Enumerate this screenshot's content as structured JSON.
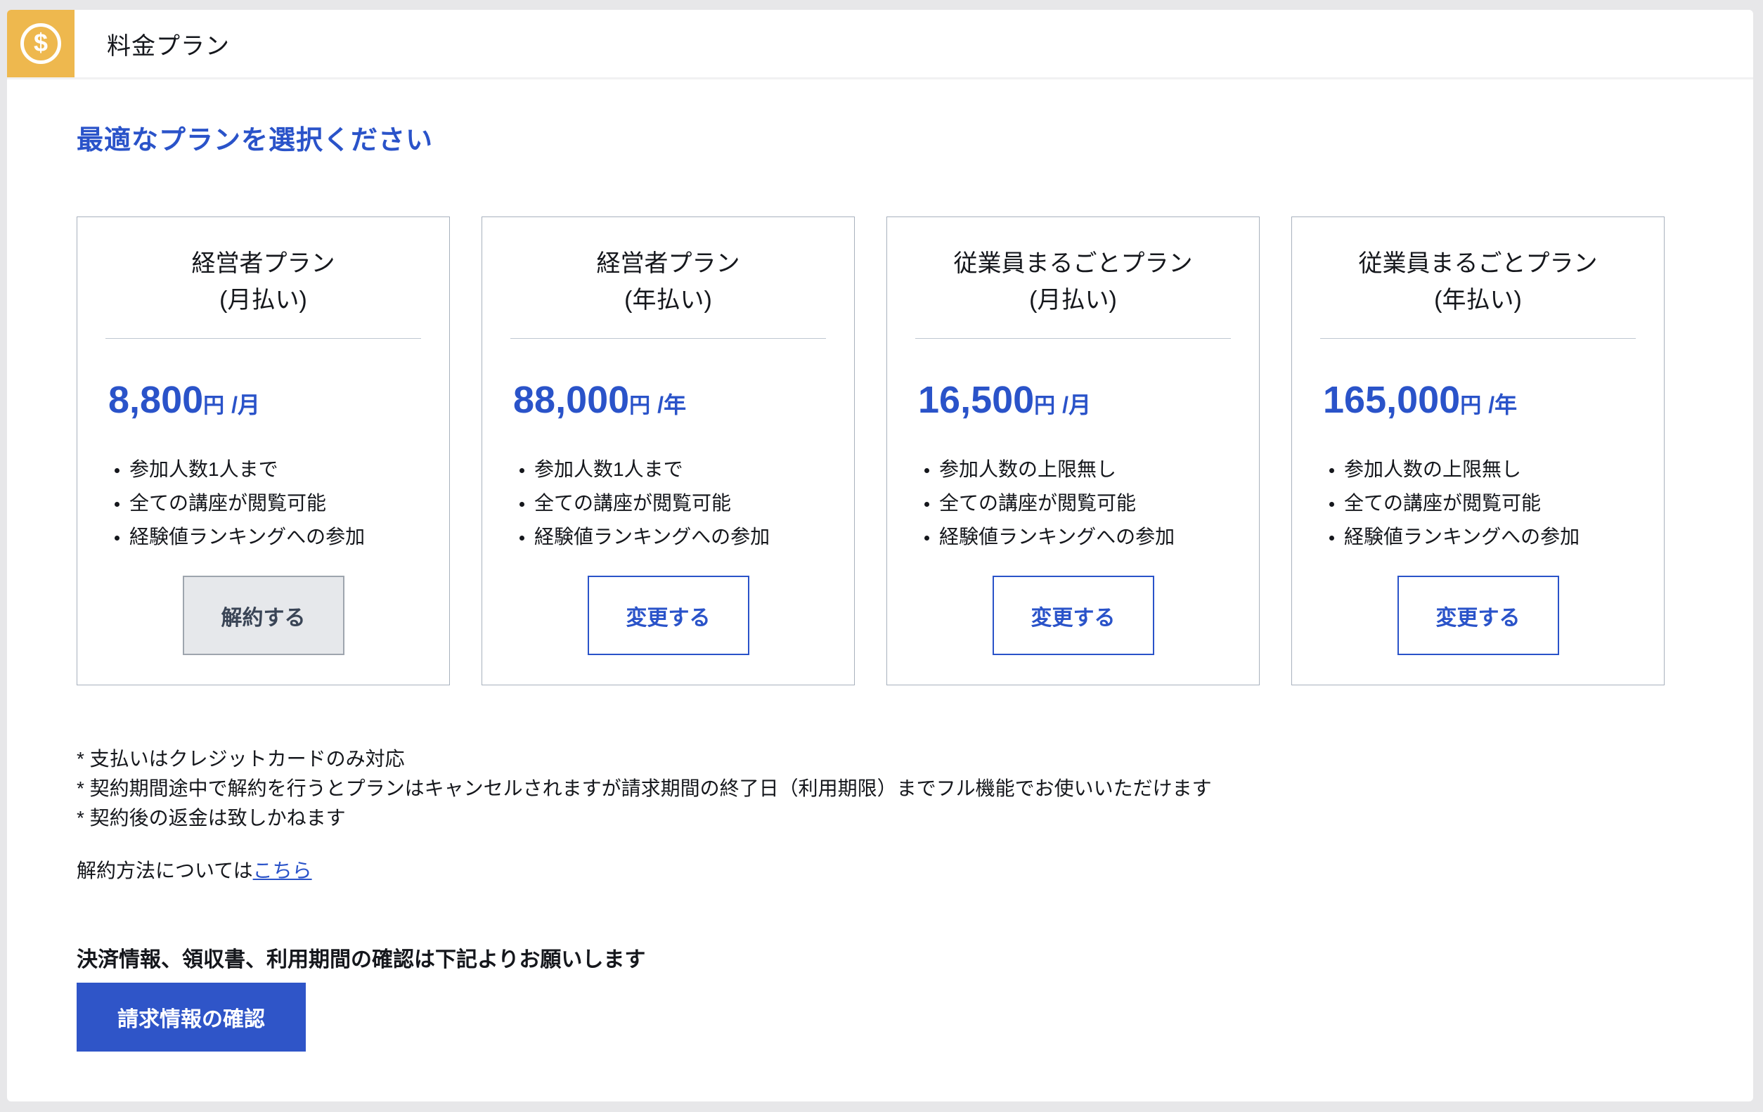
{
  "header": {
    "title": "料金プラン",
    "icon": "dollar-circle-icon"
  },
  "heading": "最適なプランを選択ください",
  "plans": [
    {
      "title_line1": "経営者プラン",
      "title_line2": "(月払い)",
      "price_amount": "8,800",
      "price_currency": "円",
      "price_period": "/月",
      "features": [
        "参加人数1人まで",
        "全ての講座が閲覧可能",
        "経験値ランキングへの参加"
      ],
      "button_label": "解約する"
    },
    {
      "title_line1": "経営者プラン",
      "title_line2": "(年払い)",
      "price_amount": "88,000",
      "price_currency": "円",
      "price_period": "/年",
      "features": [
        "参加人数1人まで",
        "全ての講座が閲覧可能",
        "経験値ランキングへの参加"
      ],
      "button_label": "変更する"
    },
    {
      "title_line1": "従業員まるごとプラン",
      "title_line2": "(月払い)",
      "price_amount": "16,500",
      "price_currency": "円",
      "price_period": "/月",
      "features": [
        "参加人数の上限無し",
        "全ての講座が閲覧可能",
        "経験値ランキングへの参加"
      ],
      "button_label": "変更する"
    },
    {
      "title_line1": "従業員まるごとプラン",
      "title_line2": "(年払い)",
      "price_amount": "165,000",
      "price_currency": "円",
      "price_period": "/年",
      "features": [
        "参加人数の上限無し",
        "全ての講座が閲覧可能",
        "経験値ランキングへの参加"
      ],
      "button_label": "変更する"
    }
  ],
  "notes": [
    "* 支払いはクレジットカードのみ対応",
    "* 契約期間途中で解約を行うとプランはキャンセルされますが請求期間の終了日（利用期限）までフル機能でお使いいただけます",
    "* 契約後の返金は致しかねます"
  ],
  "cancel_info": {
    "prefix": "解約方法については",
    "link_label": "こちら"
  },
  "billing": {
    "prompt": "決済情報、領収書、利用期間の確認は下記よりお願いします",
    "button_label": "請求情報の確認"
  },
  "colors": {
    "accent_blue": "#2a53c9",
    "cta_blue": "#2f55c8",
    "icon_orange": "#eeb84e",
    "outer_background": "#e7e7e9",
    "card_border": "#a8b1bd"
  }
}
